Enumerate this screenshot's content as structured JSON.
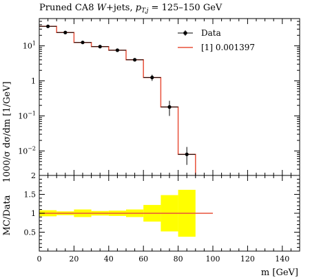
{
  "chart_data": [
    {
      "type": "line",
      "title": "Pruned CA8 W+jets, p_T,j = 125–150 GeV",
      "title_parts": {
        "lead": "Pruned CA8 ",
        "w": "W",
        "mid": "+jets, ",
        "pt": "p",
        "sub": "T,j",
        "tail": " = 125–150 GeV"
      },
      "ylabel": "1000/σ dσ/dm [1/GeV]",
      "yscale": "log",
      "ylim": [
        0.002,
        60
      ],
      "xlim": [
        0,
        150
      ],
      "y_ticks": [
        {
          "value": 0.01,
          "label": "10",
          "exp": "−2"
        },
        {
          "value": 0.1,
          "label": "10",
          "exp": "−1"
        },
        {
          "value": 1,
          "label": "1",
          "exp": ""
        },
        {
          "value": 10,
          "label": "10",
          "exp": "1"
        }
      ],
      "legend_position": "top-right",
      "series": [
        {
          "name": "Data",
          "kind": "points",
          "color": "#000000",
          "x": [
            5,
            15,
            25,
            35,
            45,
            55,
            65,
            75,
            85
          ],
          "y": [
            36,
            24,
            12.5,
            9.5,
            7.5,
            4.0,
            1.25,
            0.18,
            0.008
          ],
          "yerr_low": [
            34,
            22.5,
            11.8,
            9.0,
            7.1,
            3.8,
            1.0,
            0.1,
            0.004
          ],
          "yerr_high": [
            38,
            25.5,
            13.2,
            10.0,
            7.9,
            4.2,
            1.5,
            0.27,
            0.013
          ]
        },
        {
          "name": "[1] 0.001397",
          "kind": "step",
          "color": "#e8503a",
          "bin_edges": [
            0,
            10,
            20,
            30,
            40,
            50,
            60,
            70,
            80,
            90
          ],
          "values": [
            36,
            24,
            12.5,
            9.5,
            7.5,
            4.0,
            1.25,
            0.18,
            0.008
          ]
        }
      ]
    },
    {
      "type": "line",
      "xlabel": "m [GeV]",
      "ylabel": "MC/Data",
      "ylim": [
        0,
        2
      ],
      "xlim": [
        0,
        150
      ],
      "y_ticks": [
        0.5,
        1,
        1.5,
        2
      ],
      "y_tick_labels": [
        "0.5",
        "1",
        "1.5",
        "2"
      ],
      "x_ticks": [
        0,
        20,
        40,
        60,
        80,
        100,
        120,
        140
      ],
      "x_tick_labels": [
        "0",
        "20",
        "40",
        "60",
        "80",
        "100",
        "120",
        "140"
      ],
      "band_color": "#ffff00",
      "line_color": "#e8503a",
      "bin_edges": [
        0,
        10,
        20,
        30,
        40,
        50,
        60,
        70,
        80,
        90
      ],
      "band_low": [
        0.92,
        0.95,
        0.9,
        0.94,
        0.93,
        0.9,
        0.78,
        0.52,
        0.38
      ],
      "band_high": [
        1.08,
        1.05,
        1.1,
        1.06,
        1.07,
        1.1,
        1.22,
        1.48,
        1.62
      ],
      "ratio_line_x": [
        0,
        100
      ],
      "ratio_line_y": 1
    }
  ]
}
